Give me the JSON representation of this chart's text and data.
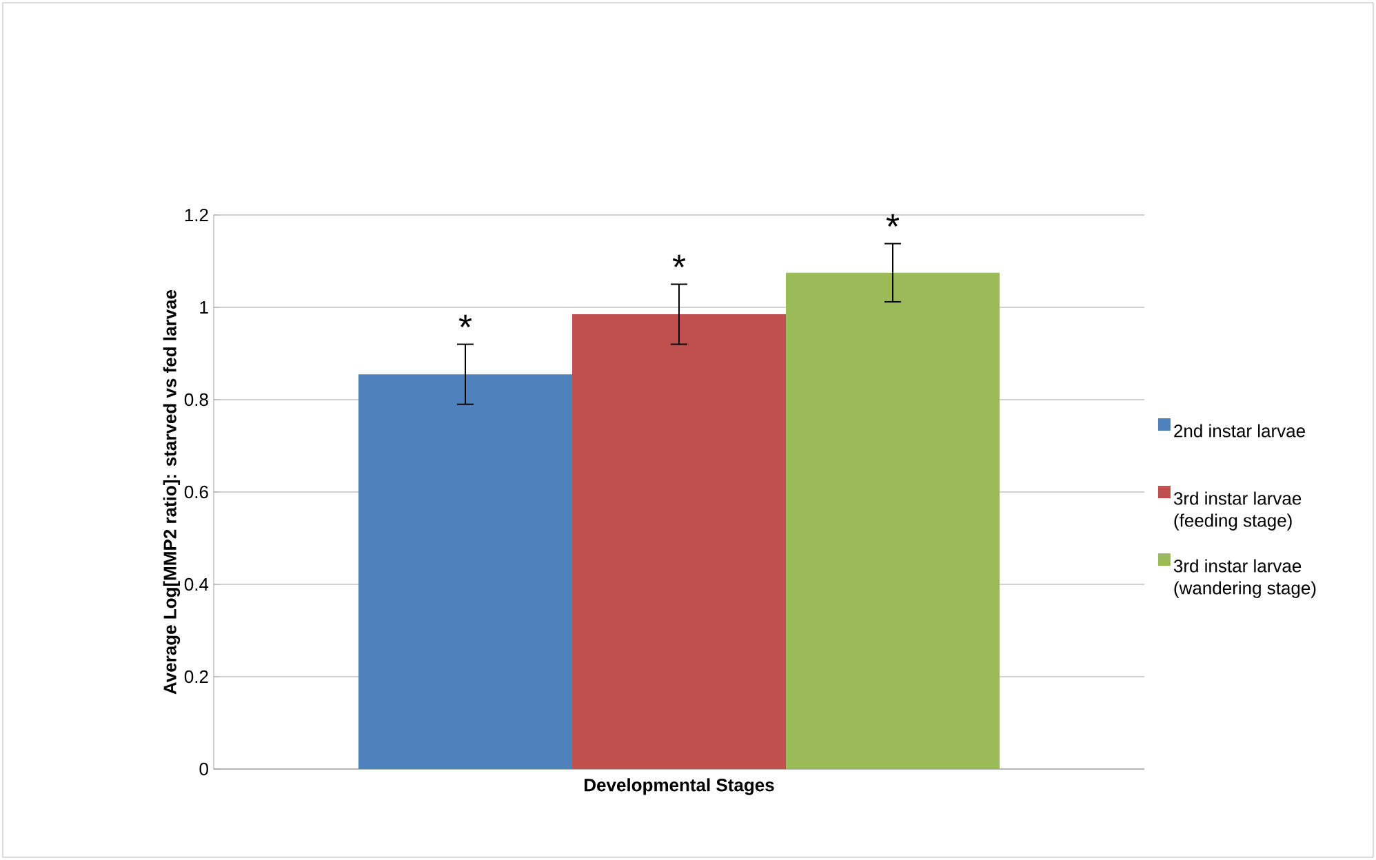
{
  "chart_data": {
    "type": "bar",
    "xlabel": "Developmental Stages",
    "ylabel": "Average Log[MMP2 ratio]: starved vs fed larvae",
    "categories": [
      null
    ],
    "series": [
      {
        "name": "2nd instar larvae",
        "color": "#4f81bd",
        "values": [
          0.855
        ],
        "errors": [
          0.065
        ]
      },
      {
        "name": "3rd instar larvae (feeding stage)",
        "color": "#c0504d",
        "values": [
          0.985
        ],
        "errors": [
          0.065
        ]
      },
      {
        "name": "3rd instar larvae (wandering stage)",
        "color": "#9bbb59",
        "values": [
          1.075
        ],
        "errors": [
          0.063
        ]
      }
    ],
    "annotations": [
      "*",
      "*",
      "*"
    ],
    "ylim": [
      0,
      1.2
    ],
    "yticks": [
      0,
      0.2,
      0.4,
      0.6,
      0.8,
      1,
      1.2
    ],
    "grid": "y",
    "legend": "right"
  }
}
